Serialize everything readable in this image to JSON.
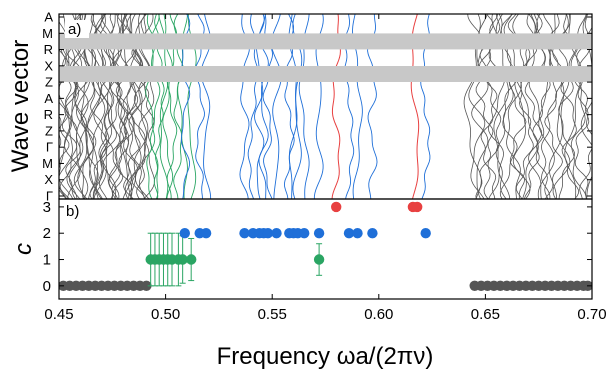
{
  "chart_data": [
    {
      "type": "line",
      "panel_label": "a)",
      "ylabel": "Wave vector",
      "k_labels": [
        "A",
        "M",
        "R",
        "X",
        "Z",
        "A",
        "R",
        "Z",
        "Γ",
        "M",
        "X",
        "Γ"
      ],
      "xlim": [
        0.45,
        0.7
      ],
      "colors": {
        "gray": "#555555",
        "green": "#2aa563",
        "blue": "#1f6fd8",
        "red": "#e84040",
        "band": "#c8c8c8"
      },
      "gray_regions": [
        [
          0.45,
          0.492
        ],
        [
          0.643,
          0.7
        ]
      ],
      "green_bands_x": [
        0.493,
        0.495,
        0.497,
        0.499,
        0.501,
        0.503,
        0.506,
        0.508,
        0.512
      ],
      "blue_bands_x": [
        0.509,
        0.516,
        0.519,
        0.537,
        0.541,
        0.544,
        0.546,
        0.548,
        0.552,
        0.558,
        0.56,
        0.562,
        0.565,
        0.572,
        0.586,
        0.59,
        0.597,
        0.622
      ],
      "red_bands_x": [
        0.58,
        0.617
      ],
      "gap_stripes_kpos": [
        1.5,
        3.5
      ]
    },
    {
      "type": "scatter",
      "panel_label": "b)",
      "xlabel": "Frequency ωa/(2πν)",
      "ylabel": "c",
      "xlim": [
        0.45,
        0.7
      ],
      "ylim": [
        -0.5,
        3.3
      ],
      "xticks": [
        0.45,
        0.5,
        0.55,
        0.6,
        0.65,
        0.7
      ],
      "xtick_labels": [
        "0.45",
        "0.50",
        "0.55",
        "0.60",
        "0.65",
        "0.70"
      ],
      "yticks": [
        0,
        1,
        2,
        3
      ],
      "ytick_labels": [
        "0",
        "1",
        "2",
        "3"
      ],
      "series": [
        {
          "color": "#555555",
          "y": 0,
          "x": [
            0.452,
            0.455,
            0.458,
            0.461,
            0.464,
            0.467,
            0.47,
            0.473,
            0.476,
            0.479,
            0.482,
            0.485,
            0.488,
            0.491,
            0.645,
            0.648,
            0.651,
            0.654,
            0.657,
            0.66,
            0.663,
            0.666,
            0.669,
            0.672,
            0.675,
            0.678,
            0.681,
            0.684,
            0.687,
            0.69,
            0.693,
            0.696,
            0.698
          ]
        },
        {
          "color": "#2aa563",
          "y": 1,
          "x": [
            0.493,
            0.495,
            0.497,
            0.499,
            0.501,
            0.503,
            0.506,
            0.508,
            0.512,
            0.572
          ],
          "err": [
            1.0,
            1.0,
            1.0,
            1.0,
            1.0,
            1.0,
            1.0,
            0.9,
            0.8,
            0.6
          ]
        },
        {
          "color": "#1f6fd8",
          "y": 2,
          "x": [
            0.509,
            0.516,
            0.519,
            0.537,
            0.541,
            0.544,
            0.546,
            0.548,
            0.552,
            0.558,
            0.56,
            0.562,
            0.565,
            0.572,
            0.586,
            0.59,
            0.597,
            0.622
          ]
        },
        {
          "color": "#e84040",
          "y": 3,
          "x": [
            0.58,
            0.616,
            0.618
          ]
        }
      ]
    }
  ]
}
